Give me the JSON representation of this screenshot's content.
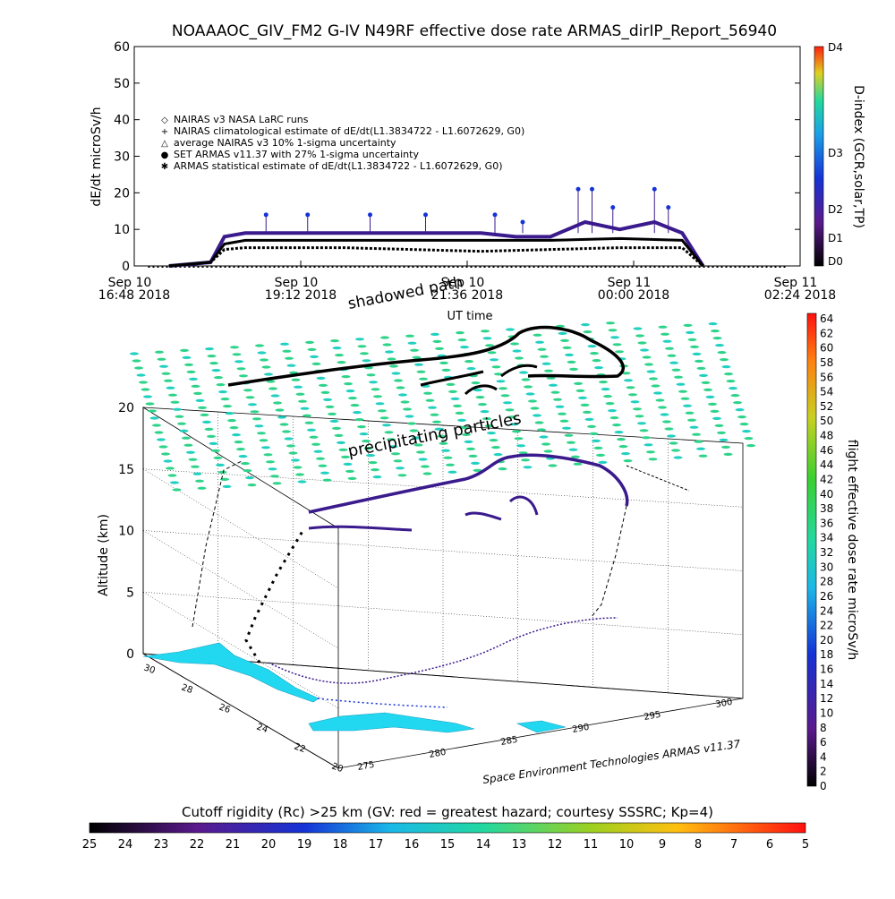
{
  "title": "NOAAAOC_GIV_FM2 G-IV    N49RF   effective dose rate ARMAS_dirIP_Report_56940",
  "top_chart": {
    "ylabel": "dE/dt microSv/h",
    "y_ticks": [
      "0",
      "10",
      "20",
      "30",
      "40",
      "50",
      "60"
    ],
    "x_ticks": [
      {
        "l1": "Sep 10",
        "l2": "16:48 2018"
      },
      {
        "l1": "Sep 10",
        "l2": "19:12 2018"
      },
      {
        "l1": "Sep 10",
        "l2": "21:36 2018"
      },
      {
        "l1": "Sep 11",
        "l2": "00:00 2018"
      },
      {
        "l1": "Sep 11",
        "l2": "02:24 2018"
      }
    ],
    "xlabel": "UT time",
    "legend": [
      "NAIRAS v3 NASA LaRC runs",
      "NAIRAS climatological estimate of dE/dt(L1.3834722 - L1.6072629, G0)",
      "average NAIRAS v3 10% 1-sigma uncertainty",
      "SET ARMAS v11.37 with 27% 1-sigma uncertainty",
      "ARMAS statistical estimate of dE/dt(L1.3834722 - L1.6072629, G0)"
    ],
    "legend_markers": [
      "◇",
      "+",
      "△",
      "●",
      "✱"
    ],
    "dindex_label": "D-index (GCR,solar,TP)",
    "dindex_ticks": [
      "D4",
      "D3",
      "D2",
      "D1",
      "D0"
    ]
  },
  "chart_data": [
    {
      "type": "line",
      "title": "NOAAAOC_GIV_FM2 G-IV    N49RF   effective dose rate ARMAS_dirIP_Report_56940",
      "xlabel": "UT time",
      "ylabel": "dE/dt microSv/h",
      "ylim": [
        0,
        60
      ],
      "x_units": "hours since Sep 10 16:48 2018",
      "xlim": [
        0,
        9.6
      ],
      "series": [
        {
          "name": "SET ARMAS v11.37 with 27% 1-sigma uncertainty",
          "color": "#3a1a8c",
          "x": [
            0.5,
            1.1,
            1.3,
            1.6,
            2.0,
            3.0,
            4.0,
            4.5,
            5.0,
            5.5,
            6.0,
            6.5,
            7.0,
            7.5,
            7.9,
            8.2
          ],
          "y": [
            0,
            1,
            8,
            9,
            9,
            9,
            9,
            9,
            9,
            8,
            8,
            12,
            10,
            12,
            9,
            0
          ]
        },
        {
          "name": "NAIRAS climatological estimate of dE/dt(L1.3834722 - L1.6072629, G0)",
          "color": "#000000",
          "x": [
            0.5,
            1.1,
            1.3,
            1.6,
            2.0,
            3.0,
            4.0,
            5.0,
            6.0,
            7.0,
            7.9,
            8.2
          ],
          "y": [
            0,
            1,
            6,
            7,
            7,
            7,
            7,
            7,
            7,
            7.5,
            7,
            0
          ]
        },
        {
          "name": "NAIRAS v3 NASA LaRC runs",
          "color": "#000000",
          "x": [
            0.5,
            1.1,
            1.3,
            1.6,
            2.0,
            3.0,
            4.0,
            5.0,
            6.0,
            7.0,
            7.9,
            8.2
          ],
          "y": [
            0,
            1,
            4.5,
            5,
            5,
            5,
            4.5,
            4,
            4.5,
            5,
            5,
            0
          ]
        }
      ],
      "armas_spikes": {
        "x": [
          1.9,
          2.5,
          3.4,
          4.2,
          5.2,
          5.6,
          6.4,
          6.6,
          6.9,
          7.5,
          7.7
        ],
        "y": [
          14,
          14,
          14,
          14,
          14,
          12,
          21,
          21,
          16,
          21,
          16
        ]
      }
    },
    {
      "type": "scatter",
      "title": "",
      "xlabel": "",
      "ylabel": "Altitude (km)",
      "zlim": [
        0,
        20
      ],
      "z_ticks": [
        "0",
        "5",
        "10",
        "15",
        "20"
      ],
      "lat_ticks": [
        "30",
        "28",
        "26",
        "24",
        "22",
        "20"
      ],
      "lon_ticks": [
        "275",
        "280",
        "285",
        "290",
        "295",
        "300"
      ],
      "annotations": [
        "shadowed path",
        "precipitating particles"
      ],
      "credit": "Space Environment Technologies ARMAS v11.37"
    }
  ],
  "right_colorbar": {
    "label": "flight effective dose rate microSv/h",
    "ticks": [
      "64",
      "62",
      "60",
      "58",
      "56",
      "54",
      "52",
      "50",
      "48",
      "46",
      "44",
      "42",
      "40",
      "38",
      "36",
      "34",
      "32",
      "30",
      "28",
      "26",
      "24",
      "22",
      "20",
      "18",
      "16",
      "14",
      "12",
      "10",
      "8",
      "6",
      "4",
      "2",
      "0"
    ]
  },
  "bottom_colorbar": {
    "title": "Cutoff rigidity (Rc) >25 km (GV: red = greatest hazard; courtesy SSSRC; Kp=4)",
    "ticks": [
      "25",
      "24",
      "23",
      "22",
      "21",
      "20",
      "19",
      "18",
      "17",
      "16",
      "15",
      "14",
      "13",
      "12",
      "11",
      "10",
      "9",
      "8",
      "7",
      "6",
      "5"
    ]
  },
  "colors": {
    "armas": "#3a1a8c",
    "armas_spike": "#1533d6",
    "nairas": "#000000",
    "wind": "#2ed38a",
    "sea_ice": "#22d8f0"
  }
}
